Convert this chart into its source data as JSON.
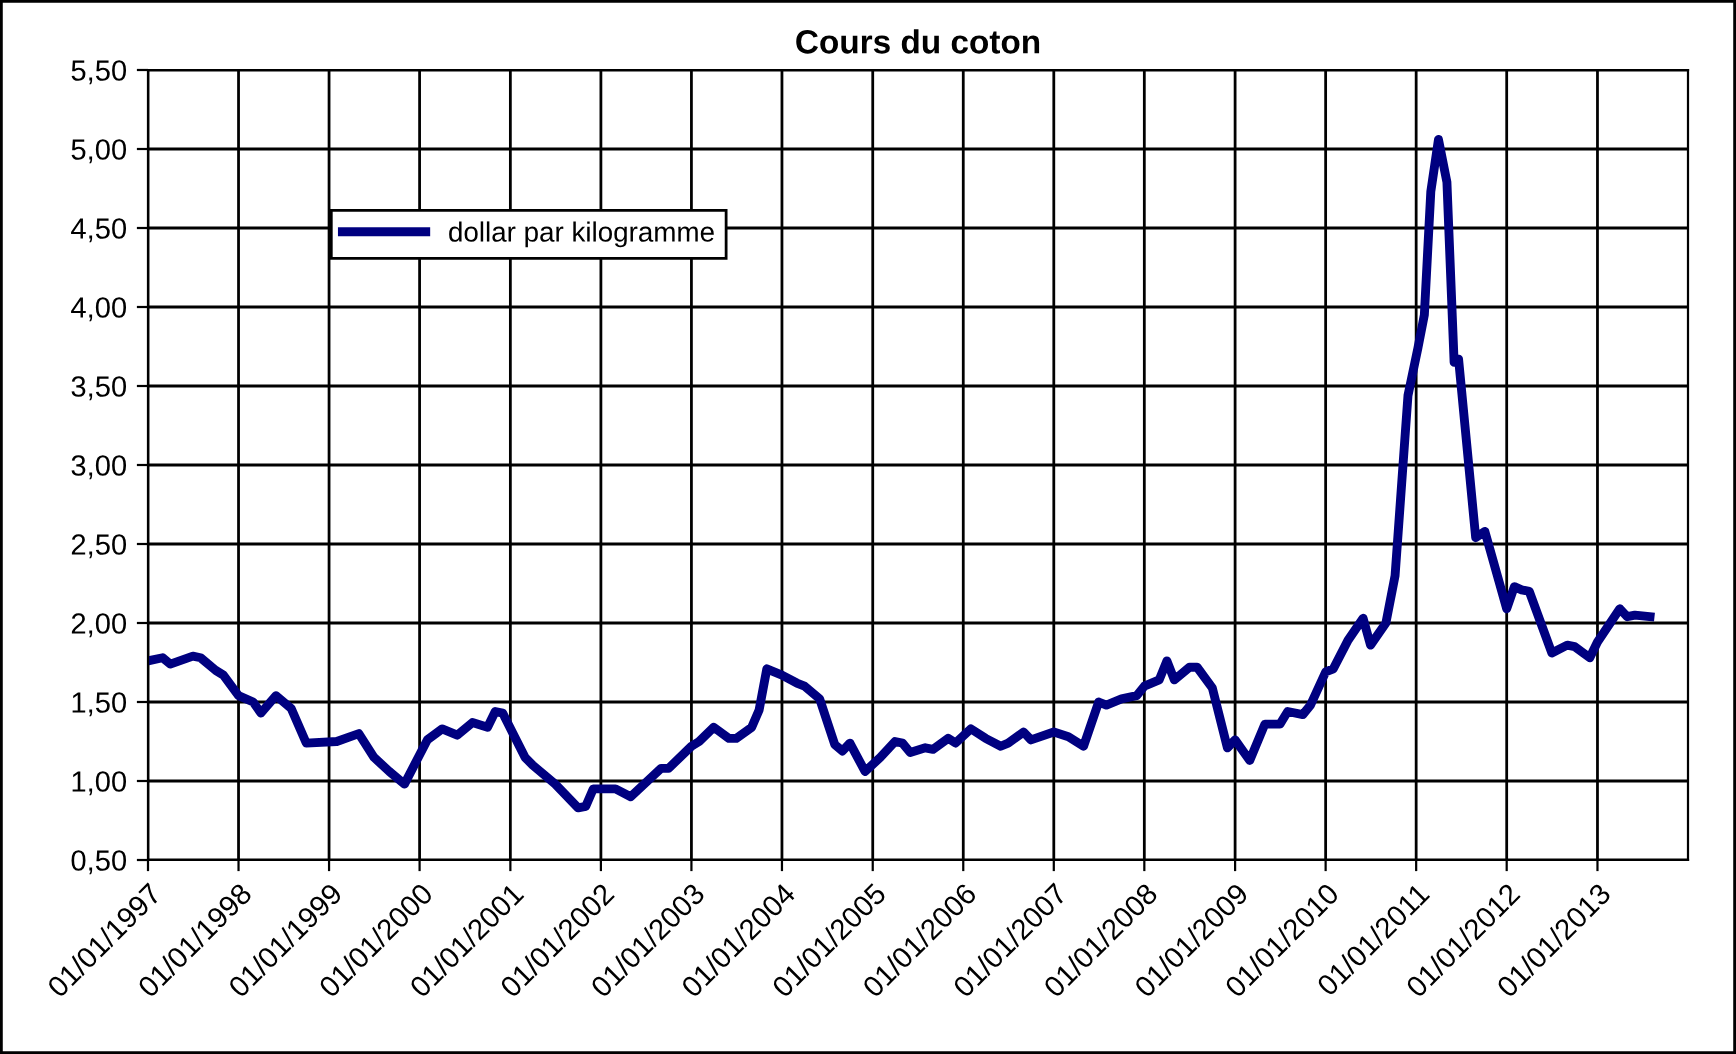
{
  "chart_data": {
    "type": "line",
    "title": "Cours du coton",
    "x": [
      "1997-01",
      "1997-03",
      "1997-04",
      "1997-07",
      "1997-08",
      "1997-10",
      "1997-11",
      "1998-01",
      "1998-03",
      "1998-04",
      "1998-06",
      "1998-08",
      "1998-10",
      "1999-02",
      "1999-05",
      "1999-07",
      "1999-09",
      "1999-11",
      "2000-02",
      "2000-04",
      "2000-06",
      "2000-08",
      "2000-10",
      "2000-11",
      "2000-12",
      "2001-03",
      "2001-04",
      "2001-07",
      "2001-10",
      "2001-11",
      "2001-12",
      "2002-03",
      "2002-05",
      "2002-09",
      "2002-10",
      "2003-01",
      "2003-02",
      "2003-04",
      "2003-06",
      "2003-07",
      "2003-09",
      "2003-10",
      "2003-11",
      "2004-01",
      "2004-03",
      "2004-04",
      "2004-06",
      "2004-08",
      "2004-09",
      "2004-10",
      "2004-12",
      "2005-02",
      "2005-04",
      "2005-05",
      "2005-06",
      "2005-08",
      "2005-09",
      "2005-11",
      "2005-12",
      "2006-02",
      "2006-04",
      "2006-06",
      "2006-07",
      "2006-09",
      "2006-10",
      "2007-01",
      "2007-03",
      "2007-05",
      "2007-07",
      "2007-08",
      "2007-10",
      "2007-12",
      "2008-01",
      "2008-03",
      "2008-04",
      "2008-05",
      "2008-07",
      "2008-08",
      "2008-10",
      "2008-12",
      "2009-01",
      "2009-03",
      "2009-05",
      "2009-07",
      "2009-08",
      "2009-10",
      "2009-11",
      "2010-01",
      "2010-02",
      "2010-04",
      "2010-06",
      "2010-07",
      "2010-09",
      "2010-10-08",
      "2010-11-29",
      "2011-01-08",
      "2011-02-03",
      "2011-03-01",
      "2011-04-01",
      "2011-05-05",
      "2011-06-03",
      "2011-06-21",
      "2011-08-29",
      "2011-10-05",
      "2012-01",
      "2012-02",
      "2012-03",
      "2012-04",
      "2012-07",
      "2012-09",
      "2012-10",
      "2012-12",
      "2013-01",
      "2013-04",
      "2013-05",
      "2013-06",
      "2013-08"
    ],
    "series": [
      {
        "name": "dollar par kilogramme",
        "color": "#000080",
        "values": [
          1.76,
          1.78,
          1.74,
          1.79,
          1.78,
          1.7,
          1.67,
          1.54,
          1.5,
          1.43,
          1.54,
          1.46,
          1.24,
          1.25,
          1.3,
          1.15,
          1.06,
          0.98,
          1.26,
          1.33,
          1.29,
          1.37,
          1.34,
          1.44,
          1.43,
          1.15,
          1.1,
          0.98,
          0.83,
          0.84,
          0.95,
          0.95,
          0.9,
          1.08,
          1.08,
          1.22,
          1.25,
          1.34,
          1.27,
          1.27,
          1.34,
          1.45,
          1.71,
          1.67,
          1.62,
          1.6,
          1.52,
          1.23,
          1.19,
          1.24,
          1.06,
          1.15,
          1.25,
          1.24,
          1.18,
          1.21,
          1.2,
          1.27,
          1.24,
          1.33,
          1.27,
          1.22,
          1.24,
          1.31,
          1.26,
          1.31,
          1.28,
          1.22,
          1.5,
          1.48,
          1.52,
          1.54,
          1.6,
          1.64,
          1.76,
          1.64,
          1.72,
          1.72,
          1.59,
          1.21,
          1.26,
          1.13,
          1.36,
          1.36,
          1.44,
          1.42,
          1.48,
          1.69,
          1.71,
          1.89,
          2.03,
          1.86,
          2.0,
          2.3,
          3.44,
          3.74,
          3.95,
          4.73,
          5.06,
          4.79,
          3.65,
          3.67,
          2.54,
          2.58,
          2.09,
          2.23,
          2.21,
          2.2,
          1.81,
          1.86,
          1.85,
          1.78,
          1.88,
          2.09,
          2.04,
          2.05,
          2.04
        ]
      }
    ],
    "xlim": [
      "1997-01-01",
      "2014-01-01"
    ],
    "xticks": [
      {
        "value": "1997-01-01",
        "label": "01/01/1997"
      },
      {
        "value": "1998-01-01",
        "label": "01/01/1998"
      },
      {
        "value": "1999-01-01",
        "label": "01/01/1999"
      },
      {
        "value": "2000-01-01",
        "label": "01/01/2000"
      },
      {
        "value": "2001-01-01",
        "label": "01/01/2001"
      },
      {
        "value": "2002-01-01",
        "label": "01/01/2002"
      },
      {
        "value": "2003-01-01",
        "label": "01/01/2003"
      },
      {
        "value": "2004-01-01",
        "label": "01/01/2004"
      },
      {
        "value": "2005-01-01",
        "label": "01/01/2005"
      },
      {
        "value": "2006-01-01",
        "label": "01/01/2006"
      },
      {
        "value": "2007-01-01",
        "label": "01/01/2007"
      },
      {
        "value": "2008-01-01",
        "label": "01/01/2008"
      },
      {
        "value": "2009-01-01",
        "label": "01/01/2009"
      },
      {
        "value": "2010-01-01",
        "label": "01/01/2010"
      },
      {
        "value": "2011-01-01",
        "label": "01/01/2011"
      },
      {
        "value": "2012-01-01",
        "label": "01/01/2012"
      },
      {
        "value": "2013-01-01",
        "label": "01/01/2013"
      }
    ],
    "ylim": [
      0.5,
      5.5
    ],
    "yticks": [
      {
        "value": 0.5,
        "label": "0,50"
      },
      {
        "value": 1.0,
        "label": "1,00"
      },
      {
        "value": 1.5,
        "label": "1,50"
      },
      {
        "value": 2.0,
        "label": "2,00"
      },
      {
        "value": 2.5,
        "label": "2,50"
      },
      {
        "value": 3.0,
        "label": "3,00"
      },
      {
        "value": 3.5,
        "label": "3,50"
      },
      {
        "value": 4.0,
        "label": "4,00"
      },
      {
        "value": 4.5,
        "label": "4,50"
      },
      {
        "value": 5.0,
        "label": "5,00"
      },
      {
        "value": 5.5,
        "label": "5,50"
      }
    ],
    "grid": true,
    "legend": "top left",
    "marker": "none",
    "line_style": "solid"
  }
}
